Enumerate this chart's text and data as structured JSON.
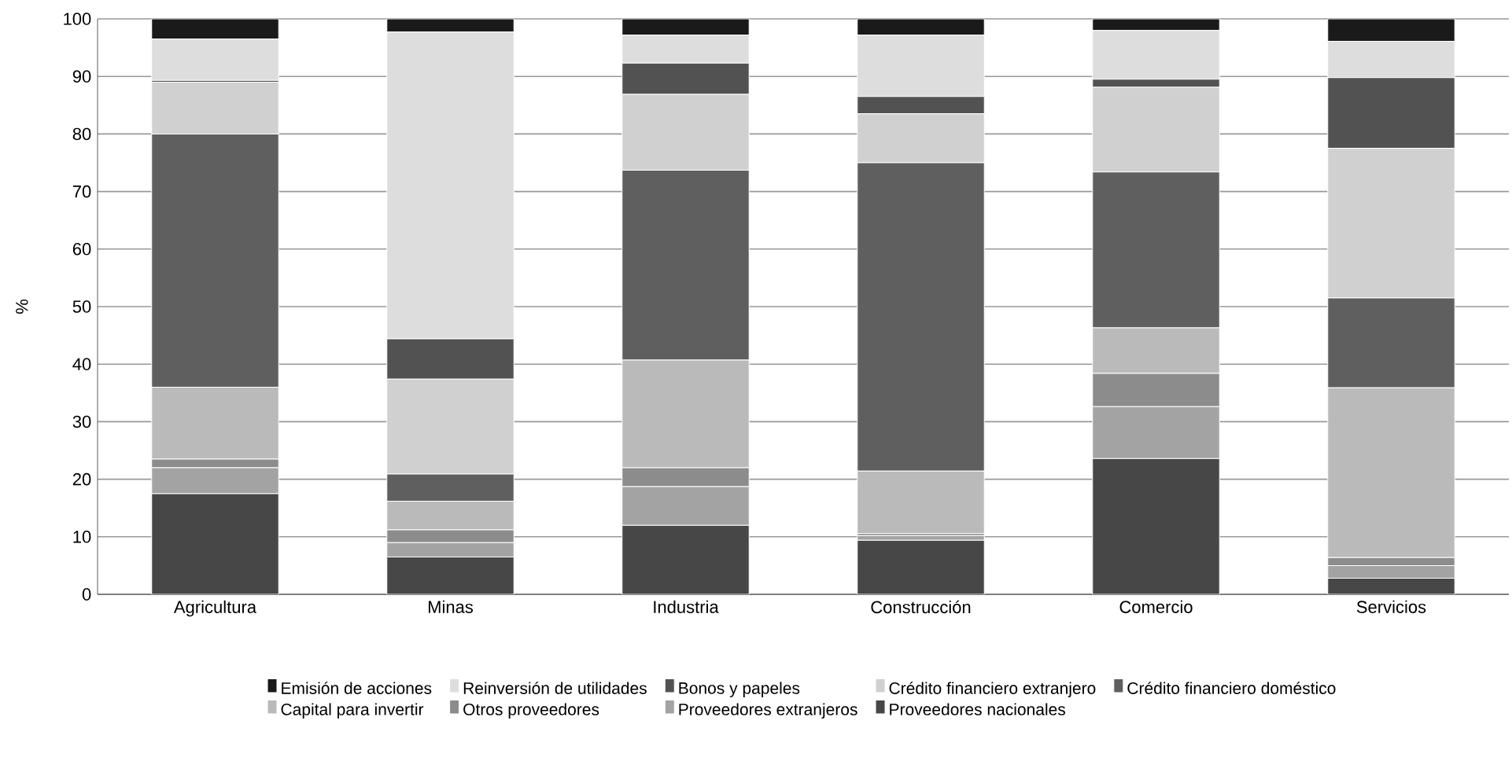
{
  "chart_data": {
    "type": "bar",
    "stacked": true,
    "ylabel": "%",
    "categories": [
      "Agricultura",
      "Minas",
      "Industria",
      "Construcción",
      "Comercio",
      "Servicios"
    ],
    "ylim": [
      0,
      100
    ],
    "yticks": [
      0,
      10,
      20,
      30,
      40,
      50,
      60,
      70,
      80,
      90,
      100
    ],
    "grid": "y",
    "legend": "bottom",
    "series": [
      {
        "name": "Proveedores nacionales",
        "color": "#474747",
        "values": [
          17.5,
          6.5,
          12,
          9.4,
          23.6,
          2.8
        ]
      },
      {
        "name": "Proveedores extranjeros",
        "color": "#a3a3a3",
        "values": [
          4.5,
          2.5,
          6.7,
          0.8,
          9,
          2.2
        ]
      },
      {
        "name": "Otros proveedores",
        "color": "#8c8c8c",
        "values": [
          1.5,
          2.2,
          3.3,
          0.4,
          5.8,
          1.4
        ]
      },
      {
        "name": "Capital para invertir",
        "color": "#bababa",
        "values": [
          12.5,
          5,
          18.7,
          10.8,
          7.9,
          29.5
        ]
      },
      {
        "name": "Crédito financiero doméstico",
        "color": "#5f5f5f",
        "values": [
          44,
          4.7,
          33,
          53.6,
          27.1,
          15.6
        ]
      },
      {
        "name": "Crédito financiero extranjero",
        "color": "#d0d0d0",
        "values": [
          9,
          16.5,
          13.2,
          8.5,
          14.7,
          26
        ]
      },
      {
        "name": "Bonos y papeles",
        "color": "#525252",
        "values": [
          0.3,
          7,
          5.4,
          3,
          1.4,
          12.3
        ]
      },
      {
        "name": "Reinversión de utilidades",
        "color": "#dddddd",
        "values": [
          7.2,
          53.3,
          4.9,
          10.7,
          8.5,
          6.3
        ]
      },
      {
        "name": "Emisión de acciones",
        "color": "#1a1a1a",
        "values": [
          3.5,
          2.3,
          2.8,
          2.8,
          2,
          3.9
        ]
      }
    ]
  }
}
